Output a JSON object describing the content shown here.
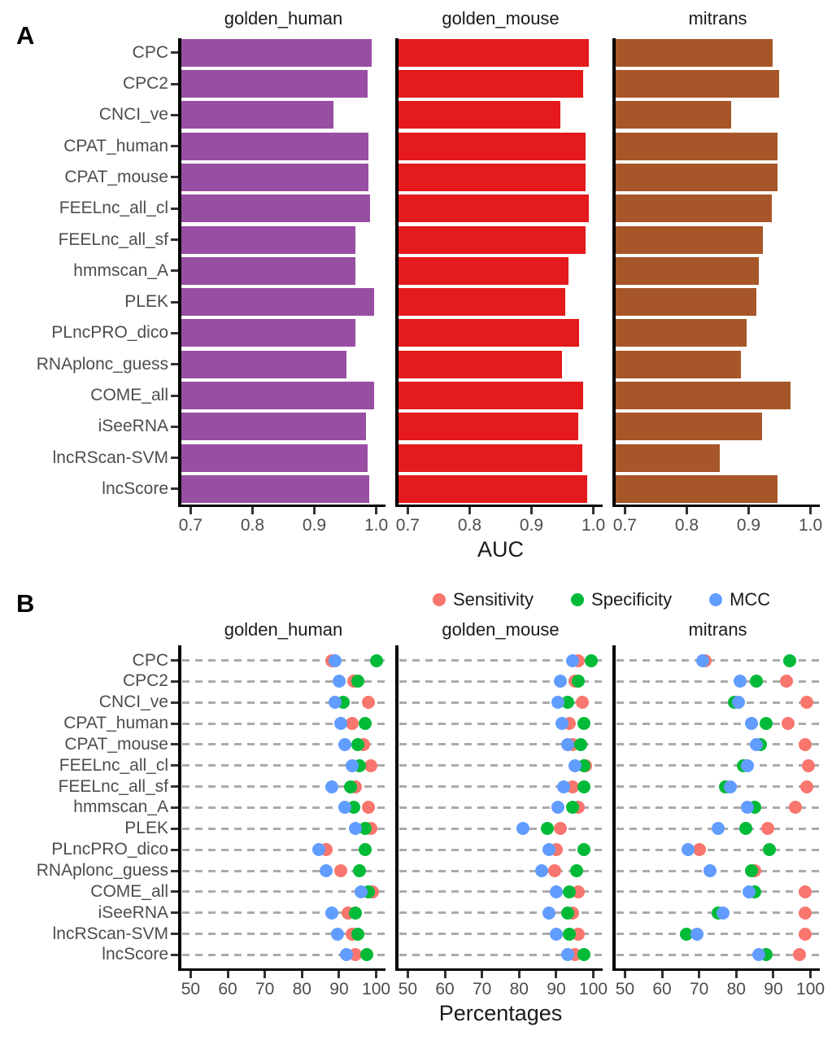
{
  "figure": {
    "panel_a_tag": "A",
    "panel_b_tag": "B",
    "datasets": [
      "golden_human",
      "golden_mouse",
      "mitrans"
    ],
    "tools": [
      "CPC",
      "CPC2",
      "CNCI_ve",
      "CPAT_human",
      "CPAT_mouse",
      "FEELnc_all_cl",
      "FEELnc_all_sf",
      "hmmscan_A",
      "PLEK",
      "PLncPRO_dico",
      "RNAplonc_guess",
      "COME_all",
      "iSeeRNA",
      "lncRScan-SVM",
      "lncScore"
    ]
  },
  "panel_a": {
    "axis_title": "AUC",
    "tick_labels": [
      "0.7",
      "0.8",
      "0.9",
      "1.0"
    ],
    "tick_values": [
      0.7,
      0.8,
      0.9,
      1.0
    ]
  },
  "panel_b": {
    "axis_title": "Percentages",
    "tick_labels": [
      "50",
      "60",
      "70",
      "80",
      "90",
      "100"
    ],
    "tick_values": [
      50,
      60,
      70,
      80,
      90,
      100
    ],
    "legend": [
      {
        "label": "Sensitivity",
        "color": "#F8766D"
      },
      {
        "label": "Specificity",
        "color": "#00BA38"
      },
      {
        "label": "MCC",
        "color": "#619CFF"
      }
    ]
  },
  "chart_data": [
    {
      "type": "bar",
      "orientation": "horizontal",
      "panels": [
        "golden_human",
        "golden_mouse",
        "mitrans"
      ],
      "categories": [
        "CPC",
        "CPC2",
        "CNCI_ve",
        "CPAT_human",
        "CPAT_mouse",
        "FEELnc_all_cl",
        "FEELnc_all_sf",
        "hmmscan_A",
        "PLEK",
        "PLncPRO_dico",
        "RNAplonc_guess",
        "COME_all",
        "iSeeRNA",
        "lncRScan-SVM",
        "lncScore"
      ],
      "xlabel": "AUC",
      "xticks": [
        0.7,
        0.8,
        0.9,
        1.0
      ],
      "xlim": [
        0.685,
        1.015
      ],
      "grid": "off",
      "series": [
        {
          "name": "golden_human",
          "color": "#984EA3",
          "values": [
            0.993,
            0.986,
            0.931,
            0.987,
            0.987,
            0.99,
            0.967,
            0.967,
            0.996,
            0.967,
            0.952,
            0.997,
            0.983,
            0.986,
            0.989
          ]
        },
        {
          "name": "golden_mouse",
          "color": "#E41A1C",
          "values": [
            0.992,
            0.984,
            0.946,
            0.987,
            0.987,
            0.993,
            0.987,
            0.96,
            0.954,
            0.977,
            0.949,
            0.984,
            0.976,
            0.982,
            0.99
          ]
        },
        {
          "name": "mitrans",
          "color": "#A65628",
          "values": [
            0.939,
            0.949,
            0.872,
            0.946,
            0.946,
            0.938,
            0.923,
            0.916,
            0.913,
            0.897,
            0.887,
            0.968,
            0.921,
            0.853,
            0.947
          ]
        }
      ]
    },
    {
      "type": "scatter",
      "orientation": "horizontal-dotplot",
      "panels": [
        "golden_human",
        "golden_mouse",
        "mitrans"
      ],
      "categories": [
        "CPC",
        "CPC2",
        "CNCI_ve",
        "CPAT_human",
        "CPAT_mouse",
        "FEELnc_all_cl",
        "FEELnc_all_sf",
        "hmmscan_A",
        "PLEK",
        "PLncPRO_dico",
        "RNAplonc_guess",
        "COME_all",
        "iSeeRNA",
        "lncRScan-SVM",
        "lncScore"
      ],
      "xlabel": "Percentages",
      "xticks": [
        50,
        60,
        70,
        80,
        90,
        100
      ],
      "xlim": [
        47.5,
        102.5
      ],
      "grid": "horizontal-dashed",
      "legend_position": "top",
      "series": [
        {
          "panel": "golden_human",
          "metrics": {
            "Sensitivity": [
              88,
              94,
              98,
              93.5,
              96.5,
              98.5,
              94.5,
              98,
              98.5,
              86.5,
              90.5,
              99,
              92.5,
              93.5,
              94.5
            ],
            "Specificity": [
              100,
              95,
              91,
              97,
              95,
              95.5,
              93,
              94,
              97,
              97,
              95.5,
              98,
              94.5,
              95,
              97.5
            ],
            "MCC": [
              89,
              90,
              89,
              90.5,
              91.5,
              93.5,
              88,
              91.5,
              94.5,
              84.5,
              86.5,
              96,
              88,
              89.5,
              92
            ]
          }
        },
        {
          "panel": "golden_mouse",
          "metrics": {
            "Sensitivity": [
              96,
              95,
              97,
              93.5,
              94.5,
              98,
              94.5,
              96,
              91,
              90,
              89.5,
              96,
              94.5,
              96,
              95
            ],
            "Specificity": [
              99.5,
              96,
              93,
              97.5,
              96.5,
              97.5,
              97.5,
              94.5,
              87.5,
              97.5,
              95.5,
              93.5,
              93,
              93.5,
              97.5
            ],
            "MCC": [
              94.5,
              91,
              90.5,
              91.5,
              93,
              95,
              92,
              90.5,
              81,
              88,
              86,
              90,
              88,
              90,
              93
            ]
          }
        },
        {
          "panel": "mitrans",
          "metrics": {
            "Sensitivity": [
              71.5,
              93.5,
              99,
              94,
              98.5,
              99.5,
              99,
              96,
              88.5,
              70,
              85,
              98.5,
              98.5,
              98.5,
              97
            ],
            "Specificity": [
              94.5,
              85.5,
              79.5,
              88,
              86.5,
              82,
              77,
              85,
              82.5,
              89,
              84,
              85,
              75,
              66.5,
              88
            ],
            "MCC": [
              71,
              81,
              80.5,
              84,
              85.5,
              83,
              78.5,
              83,
              75,
              67,
              73,
              83.5,
              76.5,
              69.5,
              86
            ]
          }
        }
      ]
    }
  ]
}
